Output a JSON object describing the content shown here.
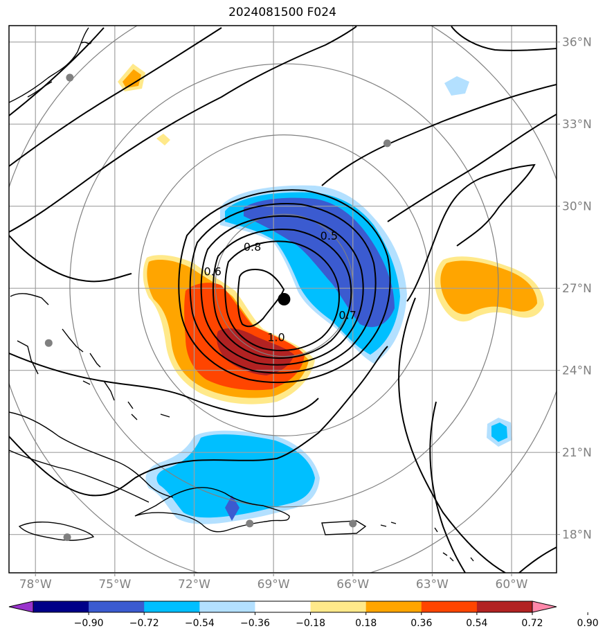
{
  "title": "2024081500 F024",
  "map": {
    "lon_range": [
      -79,
      -58.3
    ],
    "lat_range": [
      16.6,
      36.6
    ],
    "lon_ticks": [
      {
        "value": -78,
        "label": "78°W"
      },
      {
        "value": -75,
        "label": "75°W"
      },
      {
        "value": -72,
        "label": "72°W"
      },
      {
        "value": -69,
        "label": "69°W"
      },
      {
        "value": -66,
        "label": "66°W"
      },
      {
        "value": -63,
        "label": "63°W"
      },
      {
        "value": -60,
        "label": "60°W"
      }
    ],
    "lat_ticks": [
      {
        "value": 18,
        "label": "18°N"
      },
      {
        "value": 21,
        "label": "21°N"
      },
      {
        "value": 24,
        "label": "24°N"
      },
      {
        "value": 27,
        "label": "27°N"
      },
      {
        "value": 30,
        "label": "30°N"
      },
      {
        "value": 33,
        "label": "33°N"
      },
      {
        "value": 36,
        "label": "36°N"
      }
    ],
    "grid": true,
    "storm_center": {
      "lon": -68.6,
      "lat": 26.6
    },
    "range_rings_deg": [
      2.6,
      5.5,
      8.1,
      11.0
    ],
    "stations": [
      {
        "lon": -76.7,
        "lat": 34.7
      },
      {
        "lon": -64.7,
        "lat": 32.3
      },
      {
        "lon": -77.5,
        "lat": 25.0
      },
      {
        "lon": -76.8,
        "lat": 17.9
      },
      {
        "lon": -69.9,
        "lat": 18.4
      },
      {
        "lon": -66.0,
        "lat": 18.4
      }
    ],
    "contour_labels": [
      {
        "text": "0.5",
        "lon": -66.9,
        "lat": 28.9
      },
      {
        "text": "0.8",
        "lon": -69.8,
        "lat": 28.5
      },
      {
        "text": "0.6",
        "lon": -71.3,
        "lat": 27.6
      },
      {
        "text": "0.7",
        "lon": -66.2,
        "lat": 26.0
      },
      {
        "text": "1.0",
        "lon": -68.9,
        "lat": 25.2
      }
    ]
  },
  "colorbar": {
    "colors": [
      "#9933cc",
      "#000088",
      "#3b5bd0",
      "#00bfff",
      "#b3e0ff",
      "#ffffff",
      "#ffe98a",
      "#ffa500",
      "#ff4500",
      "#b22222",
      "#ff88aa"
    ],
    "ticks": [
      "−0.90",
      "−0.72",
      "−0.54",
      "−0.36",
      "−0.18",
      "0.18",
      "0.36",
      "0.54",
      "0.72",
      "0.90"
    ]
  }
}
